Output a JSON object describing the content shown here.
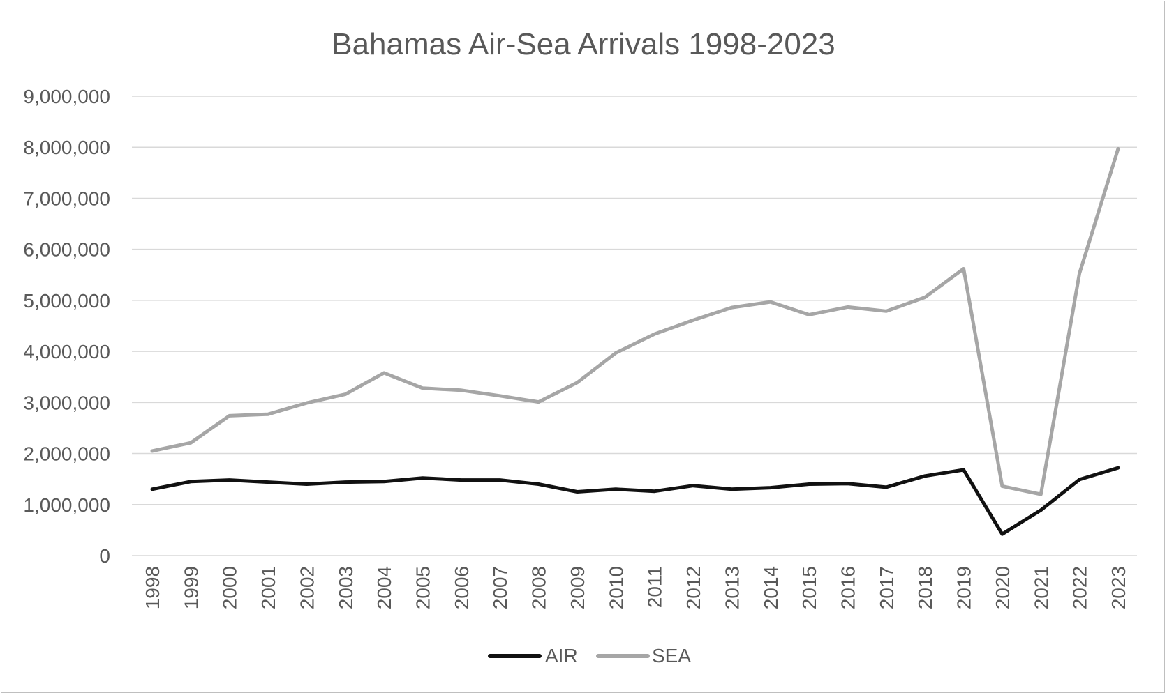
{
  "chart_data": {
    "type": "line",
    "title": "Bahamas Air-Sea Arrivals 1998-2023",
    "xlabel": "",
    "ylabel": "",
    "ylim": [
      0,
      9000000
    ],
    "y_ticks": [
      0,
      1000000,
      2000000,
      3000000,
      4000000,
      5000000,
      6000000,
      7000000,
      8000000,
      9000000
    ],
    "y_tick_labels": [
      "0",
      "1,000,000",
      "2,000,000",
      "3,000,000",
      "4,000,000",
      "5,000,000",
      "6,000,000",
      "7,000,000",
      "8,000,000",
      "9,000,000"
    ],
    "grid": true,
    "legend_position": "bottom",
    "categories": [
      "1998",
      "1999",
      "2000",
      "2001",
      "2002",
      "2003",
      "2004",
      "2005",
      "2006",
      "2007",
      "2008",
      "2009",
      "2010",
      "2011",
      "2012",
      "2013",
      "2014",
      "2015",
      "2016",
      "2017",
      "2018",
      "2019",
      "2020",
      "2021",
      "2022",
      "2023"
    ],
    "series": [
      {
        "name": "AIR",
        "color": "#111111",
        "values": [
          1300000,
          1450000,
          1480000,
          1440000,
          1400000,
          1440000,
          1450000,
          1520000,
          1480000,
          1480000,
          1400000,
          1250000,
          1300000,
          1260000,
          1370000,
          1300000,
          1330000,
          1400000,
          1410000,
          1340000,
          1560000,
          1680000,
          420000,
          890000,
          1490000,
          1720000
        ]
      },
      {
        "name": "SEA",
        "color": "#a6a6a6",
        "values": [
          2050000,
          2210000,
          2740000,
          2770000,
          2990000,
          3160000,
          3580000,
          3280000,
          3240000,
          3130000,
          3010000,
          3390000,
          3970000,
          4340000,
          4610000,
          4860000,
          4970000,
          4720000,
          4870000,
          4790000,
          5060000,
          5620000,
          1360000,
          1200000,
          5530000,
          7970000
        ]
      }
    ]
  }
}
